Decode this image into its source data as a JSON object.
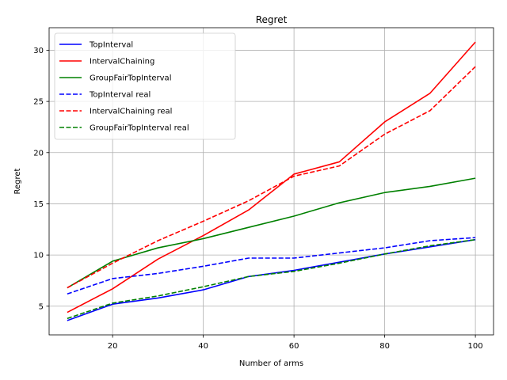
{
  "chart_data": {
    "type": "line",
    "title": "Regret",
    "xlabel": "Number of arms",
    "ylabel": "Regret",
    "xlim": [
      6,
      104
    ],
    "ylim": [
      2.2,
      32.2
    ],
    "xticks": [
      20,
      40,
      60,
      80,
      100
    ],
    "yticks": [
      5,
      10,
      15,
      20,
      25,
      30
    ],
    "grid": true,
    "legend_position": "upper-left",
    "x": [
      10,
      20,
      30,
      40,
      50,
      60,
      70,
      80,
      90,
      100
    ],
    "series": [
      {
        "name": "TopInterval",
        "color": "#0000ff",
        "dash": "solid",
        "values": [
          3.6,
          5.2,
          5.8,
          6.6,
          7.9,
          8.5,
          9.3,
          10.1,
          10.8,
          11.5
        ]
      },
      {
        "name": "IntervalChaining",
        "color": "#ff0000",
        "dash": "solid",
        "values": [
          4.4,
          6.7,
          9.6,
          11.9,
          14.4,
          17.9,
          19.1,
          23.0,
          25.8,
          30.8
        ]
      },
      {
        "name": "GroupFairTopInterval",
        "color": "#008000",
        "dash": "solid",
        "values": [
          6.8,
          9.4,
          10.7,
          11.6,
          12.7,
          13.8,
          15.1,
          16.1,
          16.7,
          17.5
        ]
      },
      {
        "name": "TopInterval real",
        "color": "#0000ff",
        "dash": "dashed",
        "values": [
          6.2,
          7.7,
          8.2,
          8.9,
          9.7,
          9.7,
          10.2,
          10.7,
          11.4,
          11.7
        ]
      },
      {
        "name": "IntervalChaining real",
        "color": "#ff0000",
        "dash": "dashed",
        "values": [
          6.8,
          9.2,
          11.4,
          13.3,
          15.3,
          17.7,
          18.7,
          21.8,
          24.1,
          28.4
        ]
      },
      {
        "name": "GroupFairTopInterval real",
        "color": "#008000",
        "dash": "dashed",
        "values": [
          3.8,
          5.3,
          6.0,
          6.9,
          7.9,
          8.4,
          9.2,
          10.1,
          10.9,
          11.5
        ]
      }
    ]
  }
}
